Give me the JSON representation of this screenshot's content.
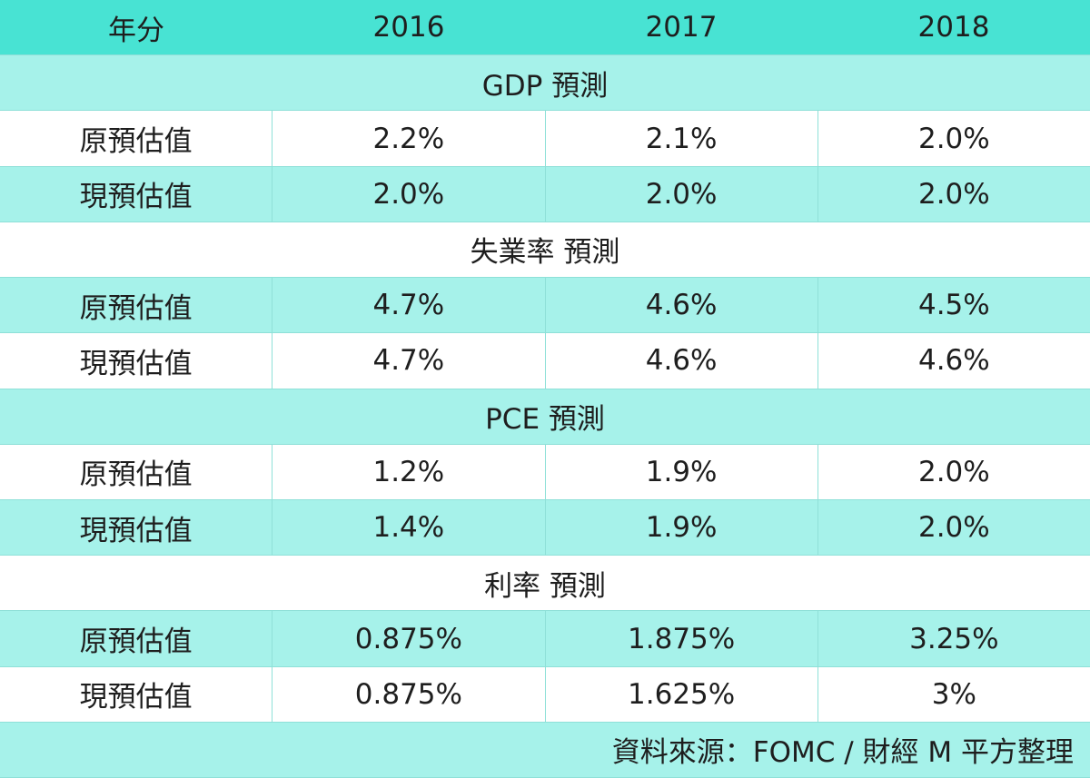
{
  "header": {
    "columns": [
      "年分",
      "2016",
      "2017",
      "2018"
    ]
  },
  "sections": [
    {
      "title": "GDP 預測",
      "rows": [
        {
          "label": "原預估值",
          "values": [
            "2.2%",
            "2.1%",
            "2.0%"
          ]
        },
        {
          "label": "現預估值",
          "values": [
            "2.0%",
            "2.0%",
            "2.0%"
          ]
        }
      ]
    },
    {
      "title": "失業率 預測",
      "rows": [
        {
          "label": "原預估值",
          "values": [
            "4.7%",
            "4.6%",
            "4.5%"
          ]
        },
        {
          "label": "現預估值",
          "values": [
            "4.7%",
            "4.6%",
            "4.6%"
          ]
        }
      ]
    },
    {
      "title": "PCE 預測",
      "rows": [
        {
          "label": "原預估值",
          "values": [
            "1.2%",
            "1.9%",
            "2.0%"
          ]
        },
        {
          "label": "現預估值",
          "values": [
            "1.4%",
            "1.9%",
            "2.0%"
          ]
        }
      ]
    },
    {
      "title": "利率 預測",
      "rows": [
        {
          "label": "原預估值",
          "values": [
            "0.875%",
            "1.875%",
            "3.25%"
          ]
        },
        {
          "label": "現預估值",
          "values": [
            "0.875%",
            "1.625%",
            "3%"
          ]
        }
      ]
    }
  ],
  "source": "資料來源：FOMC / 財經 M 平方整理"
}
